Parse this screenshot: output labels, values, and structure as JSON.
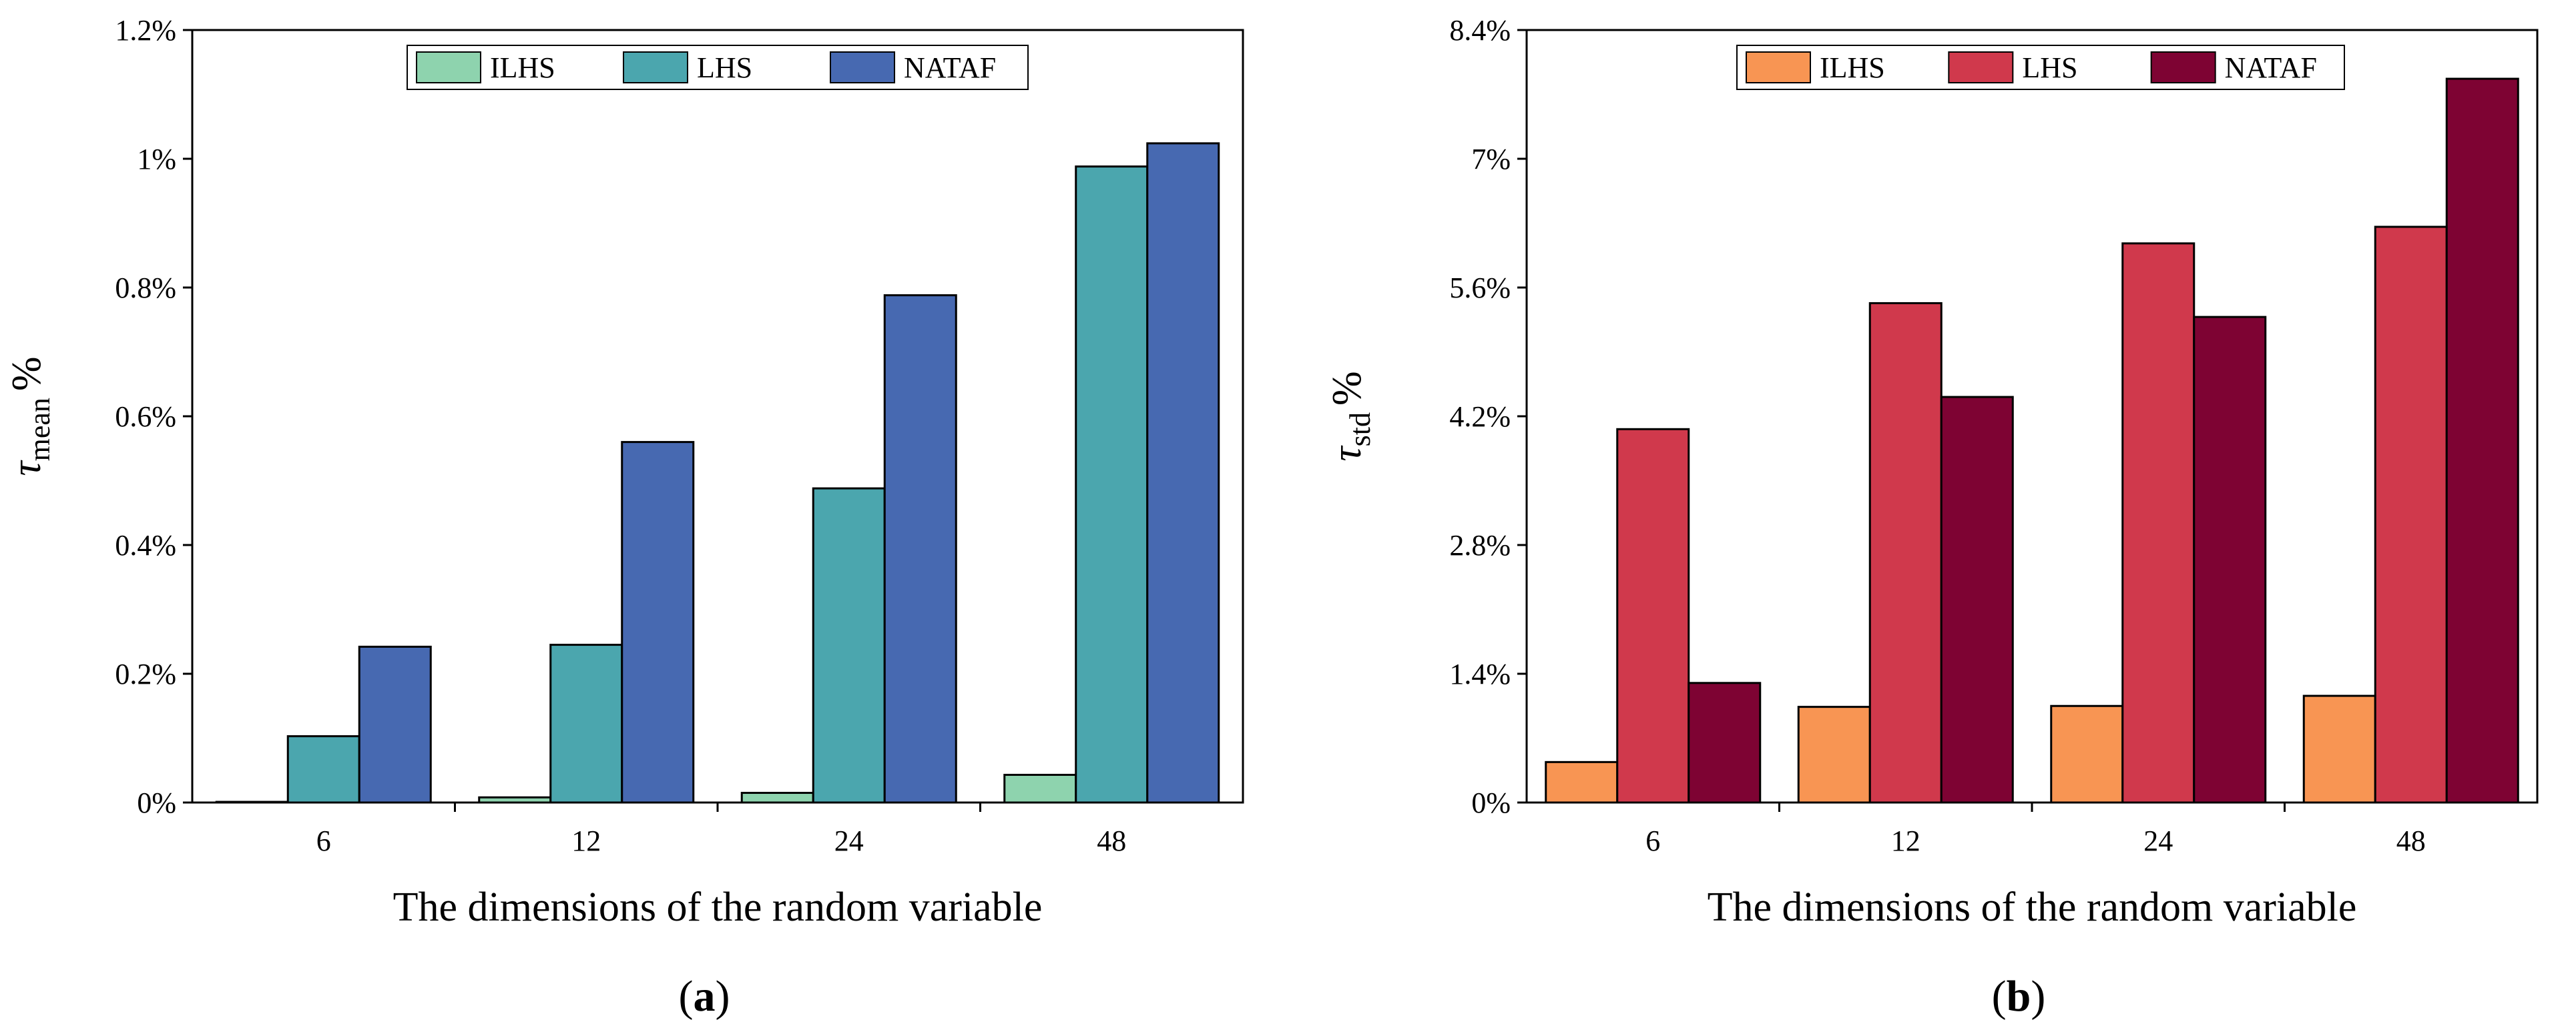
{
  "chart_data": [
    {
      "type": "bar",
      "panel_label": "a",
      "categories": [
        "6",
        "12",
        "24",
        "48"
      ],
      "series": [
        {
          "name": "ILHS",
          "color": "#8ED3AE",
          "values": [
            0.001,
            0.008,
            0.015,
            0.043
          ]
        },
        {
          "name": "LHS",
          "color": "#4BA6AE",
          "values": [
            0.103,
            0.245,
            0.488,
            0.988
          ]
        },
        {
          "name": "NATAF",
          "color": "#4769B1",
          "values": [
            0.242,
            0.56,
            0.788,
            1.024
          ]
        }
      ],
      "ylim": [
        0,
        1.2
      ],
      "yticks": [
        0,
        0.2,
        0.4,
        0.6,
        0.8,
        1.0,
        1.2
      ],
      "ytick_labels": [
        "0%",
        "0.2%",
        "0.4%",
        "0.6%",
        "0.8%",
        "1%",
        "1.2%"
      ],
      "xlabel": "The dimensions of the random variable",
      "ylabel_symbol": "τ",
      "ylabel_subscript": "mean",
      "ylabel_suffix": "%",
      "legend_position": "top-center"
    },
    {
      "type": "bar",
      "panel_label": "b",
      "categories": [
        "6",
        "12",
        "24",
        "48"
      ],
      "series": [
        {
          "name": "ILHS",
          "color": "#F89553",
          "values": [
            0.44,
            1.04,
            1.05,
            1.16
          ]
        },
        {
          "name": "LHS",
          "color": "#D0394C",
          "values": [
            4.06,
            5.43,
            6.08,
            6.26
          ]
        },
        {
          "name": "NATAF",
          "color": "#7E0333",
          "values": [
            1.3,
            4.41,
            5.28,
            7.87
          ]
        }
      ],
      "ylim": [
        0,
        8.4
      ],
      "yticks": [
        0,
        1.4,
        2.8,
        4.2,
        5.6,
        7.0,
        8.4
      ],
      "ytick_labels": [
        "0%",
        "1.4%",
        "2.8%",
        "4.2%",
        "5.6%",
        "7%",
        "8.4%"
      ],
      "xlabel": "The dimensions of the random variable",
      "ylabel_symbol": "τ",
      "ylabel_subscript": "std",
      "ylabel_suffix": "%",
      "legend_position": "top-center"
    }
  ]
}
